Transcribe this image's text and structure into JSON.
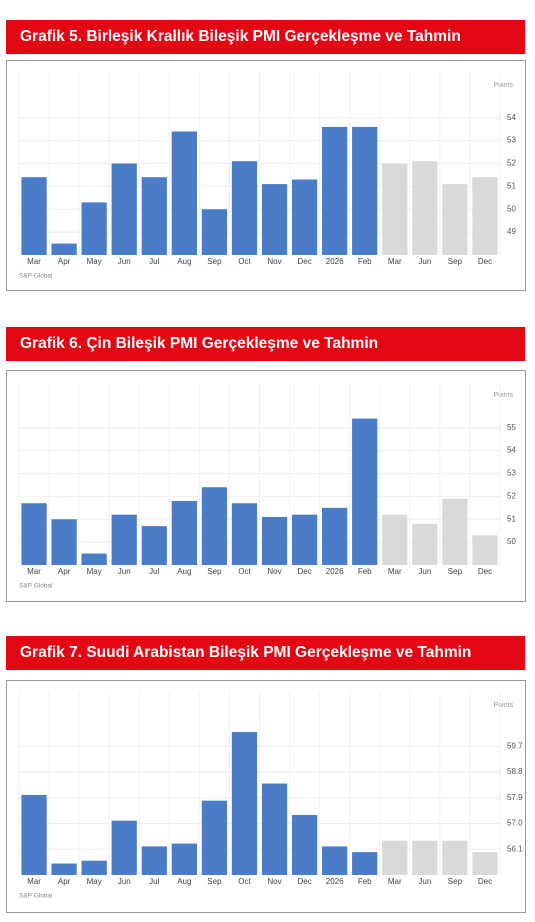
{
  "chart_data": [
    {
      "type": "bar",
      "title": "Grafik 5. Birleşik Krallık Bileşik PMI Gerçekleşme ve Tahmin",
      "y_label": "Points",
      "source": "S&P Global",
      "categories": [
        "Mar",
        "Apr",
        "May",
        "Jun",
        "Jul",
        "Aug",
        "Sep",
        "Oct",
        "Nov",
        "Dec",
        "2026",
        "Feb",
        "Mar",
        "Jun",
        "Sep",
        "Dec"
      ],
      "values": [
        51.4,
        48.5,
        50.3,
        52.0,
        51.4,
        53.4,
        50.0,
        52.1,
        51.1,
        51.3,
        53.6,
        53.6,
        52.0,
        52.1,
        51.1,
        51.4
      ],
      "colors": [
        "#4a7cc8",
        "#4a7cc8",
        "#4a7cc8",
        "#4a7cc8",
        "#4a7cc8",
        "#4a7cc8",
        "#4a7cc8",
        "#4a7cc8",
        "#4a7cc8",
        "#4a7cc8",
        "#4a7cc8",
        "#4a7cc8",
        "#d9d9d9",
        "#d9d9d9",
        "#d9d9d9",
        "#d9d9d9"
      ],
      "ylim": [
        48,
        56
      ],
      "yticks": [
        49,
        50,
        51,
        52,
        53,
        54
      ],
      "grid": true
    },
    {
      "type": "bar",
      "title": "Grafik 6. Çin Bileşik PMI Gerçekleşme ve Tahmin",
      "y_label": "Points",
      "source": "S&P Global",
      "categories": [
        "Mar",
        "Apr",
        "May",
        "Jun",
        "Jul",
        "Aug",
        "Sep",
        "Oct",
        "Nov",
        "Dec",
        "2026",
        "Feb",
        "Mar",
        "Jun",
        "Sep",
        "Dec"
      ],
      "values": [
        51.7,
        51.0,
        49.5,
        51.2,
        50.7,
        51.8,
        52.4,
        51.7,
        51.1,
        51.2,
        51.5,
        55.4,
        51.2,
        50.8,
        51.9,
        50.3
      ],
      "colors": [
        "#4a7cc8",
        "#4a7cc8",
        "#4a7cc8",
        "#4a7cc8",
        "#4a7cc8",
        "#4a7cc8",
        "#4a7cc8",
        "#4a7cc8",
        "#4a7cc8",
        "#4a7cc8",
        "#4a7cc8",
        "#4a7cc8",
        "#d9d9d9",
        "#d9d9d9",
        "#d9d9d9",
        "#d9d9d9"
      ],
      "ylim": [
        49,
        57
      ],
      "yticks": [
        50,
        51,
        52,
        53,
        54,
        55
      ],
      "grid": true
    },
    {
      "type": "bar",
      "title": "Grafik 7. Suudi Arabistan Bileşik PMI Gerçekleşme ve Tahmin",
      "y_label": "Points",
      "source": "S&P Global",
      "categories": [
        "Mar",
        "Apr",
        "May",
        "Jun",
        "Jul",
        "Aug",
        "Sep",
        "Oct",
        "Nov",
        "Dec",
        "2026",
        "Feb",
        "Mar",
        "Jun",
        "Sep",
        "Dec"
      ],
      "values": [
        58.0,
        55.6,
        55.7,
        57.1,
        56.2,
        56.3,
        57.8,
        60.2,
        58.4,
        57.3,
        56.2,
        56.0,
        56.4,
        56.4,
        56.4,
        56.0
      ],
      "colors": [
        "#4a7cc8",
        "#4a7cc8",
        "#4a7cc8",
        "#4a7cc8",
        "#4a7cc8",
        "#4a7cc8",
        "#4a7cc8",
        "#4a7cc8",
        "#4a7cc8",
        "#4a7cc8",
        "#4a7cc8",
        "#4a7cc8",
        "#d9d9d9",
        "#d9d9d9",
        "#d9d9d9",
        "#d9d9d9"
      ],
      "ylim": [
        55.2,
        61.6
      ],
      "yticks": [
        56.1,
        {
          "value": 57,
          "label": "57.0"
        },
        57.9,
        58.8,
        59.7
      ],
      "grid": true
    }
  ]
}
